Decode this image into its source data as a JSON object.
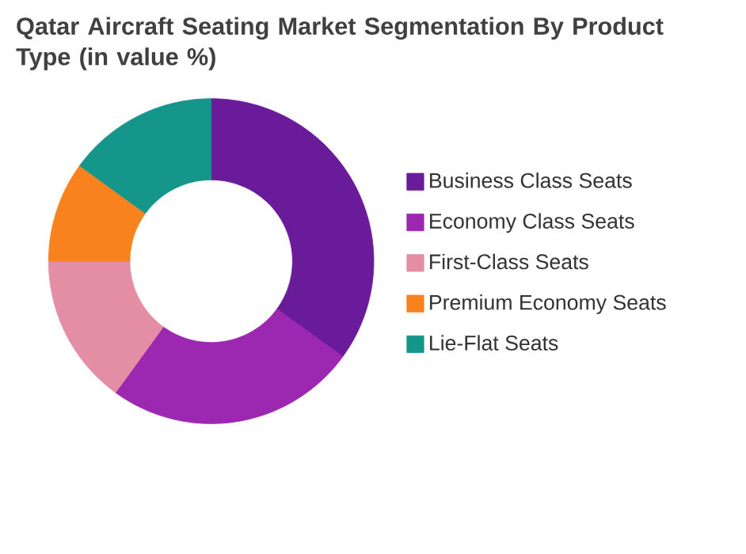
{
  "chart_data": {
    "type": "donut",
    "title": "Qatar Aircraft Seating Market Segmentation By Product Type (in value %)",
    "categories": [
      "Business Class Seats",
      "Economy Class Seats",
      "First-Class Seats",
      "Premium Economy Seats",
      "Lie-Flat Seats"
    ],
    "values": [
      35,
      25,
      15,
      10,
      15
    ],
    "colors": [
      "#6a1b9a",
      "#9c27b0",
      "#e48ea6",
      "#f7821e",
      "#14968a"
    ],
    "legend": "right"
  }
}
